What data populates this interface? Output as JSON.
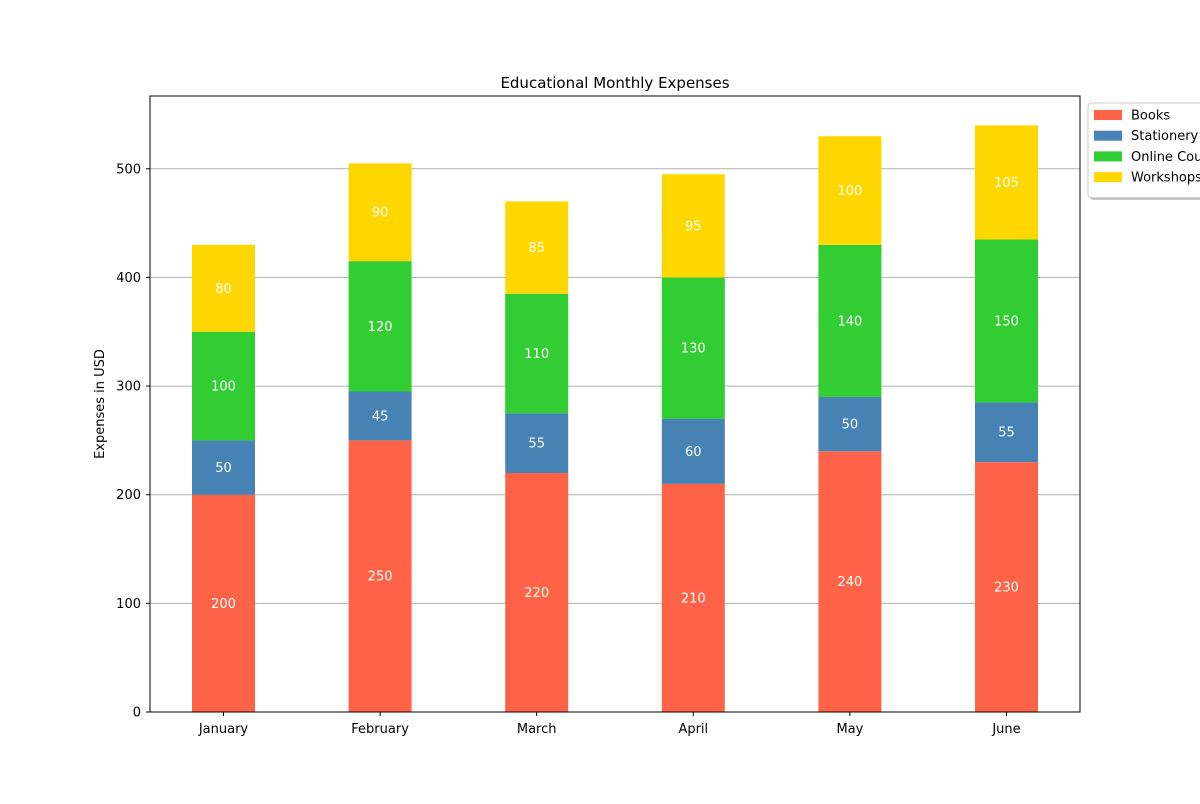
{
  "chart_data": {
    "type": "bar",
    "stacked": true,
    "title": "Educational Monthly Expenses",
    "xlabel": "",
    "ylabel": "Expenses in USD",
    "categories": [
      "January",
      "February",
      "March",
      "April",
      "May",
      "June"
    ],
    "series": [
      {
        "name": "Books",
        "color": "#ff6347",
        "values": [
          200,
          250,
          220,
          210,
          240,
          230
        ]
      },
      {
        "name": "Stationery",
        "color": "#4682b4",
        "values": [
          50,
          45,
          55,
          60,
          50,
          55
        ]
      },
      {
        "name": "Online Courses",
        "color": "#32cd32",
        "values": [
          100,
          120,
          110,
          130,
          140,
          150
        ]
      },
      {
        "name": "Workshops",
        "color": "#ffd700",
        "values": [
          80,
          90,
          85,
          95,
          100,
          105
        ]
      }
    ],
    "ylim": [
      0,
      567
    ],
    "yticks": [
      0,
      100,
      200,
      300,
      400,
      500
    ],
    "grid": "y",
    "legend_position": "upper-right-outside",
    "data_label_color": "#ffffff"
  }
}
